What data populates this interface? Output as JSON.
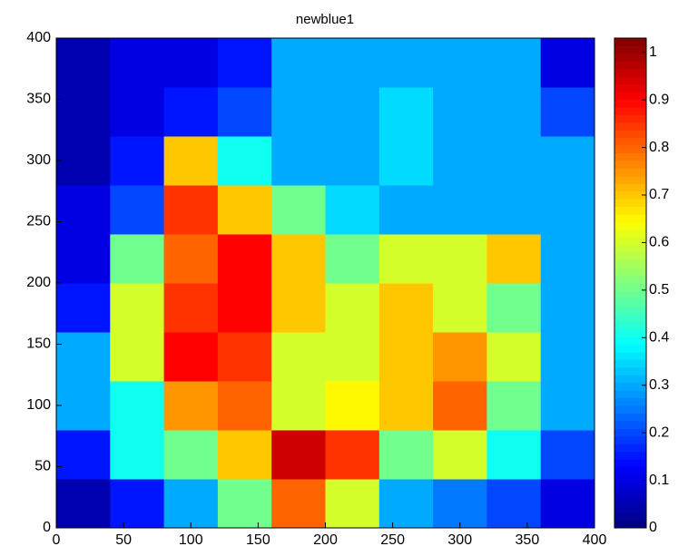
{
  "chart_data": {
    "type": "heatmap",
    "title": "newblue1",
    "xlim": [
      0,
      400
    ],
    "ylim": [
      0,
      400
    ],
    "xticks": [
      0,
      50,
      100,
      150,
      200,
      250,
      300,
      350,
      400
    ],
    "yticks": [
      0,
      50,
      100,
      150,
      200,
      250,
      300,
      350,
      400
    ],
    "clim": [
      0,
      1.03
    ],
    "cticks": [
      0,
      0.1,
      0.2,
      0.3,
      0.4,
      0.5,
      0.6,
      0.7,
      0.8,
      0.9,
      1
    ],
    "colormap": "jet",
    "z": [
      [
        0.05,
        0.15,
        0.3,
        0.5,
        0.8,
        0.6,
        0.3,
        0.25,
        0.2,
        0.1
      ],
      [
        0.15,
        0.4,
        0.5,
        0.7,
        0.95,
        0.85,
        0.5,
        0.6,
        0.4,
        0.2
      ],
      [
        0.3,
        0.4,
        0.75,
        0.8,
        0.6,
        0.65,
        0.7,
        0.8,
        0.5,
        0.3
      ],
      [
        0.3,
        0.6,
        0.9,
        0.85,
        0.6,
        0.6,
        0.7,
        0.75,
        0.6,
        0.3
      ],
      [
        0.15,
        0.6,
        0.85,
        0.9,
        0.7,
        0.6,
        0.7,
        0.6,
        0.5,
        0.3
      ],
      [
        0.1,
        0.5,
        0.8,
        0.9,
        0.7,
        0.5,
        0.6,
        0.6,
        0.7,
        0.3
      ],
      [
        0.1,
        0.2,
        0.85,
        0.7,
        0.5,
        0.35,
        0.3,
        0.3,
        0.3,
        0.3
      ],
      [
        0.05,
        0.15,
        0.7,
        0.4,
        0.3,
        0.3,
        0.35,
        0.3,
        0.3,
        0.3
      ],
      [
        0.05,
        0.1,
        0.15,
        0.2,
        0.3,
        0.3,
        0.35,
        0.3,
        0.3,
        0.2
      ],
      [
        0.05,
        0.1,
        0.1,
        0.15,
        0.3,
        0.3,
        0.3,
        0.3,
        0.3,
        0.1
      ]
    ]
  }
}
